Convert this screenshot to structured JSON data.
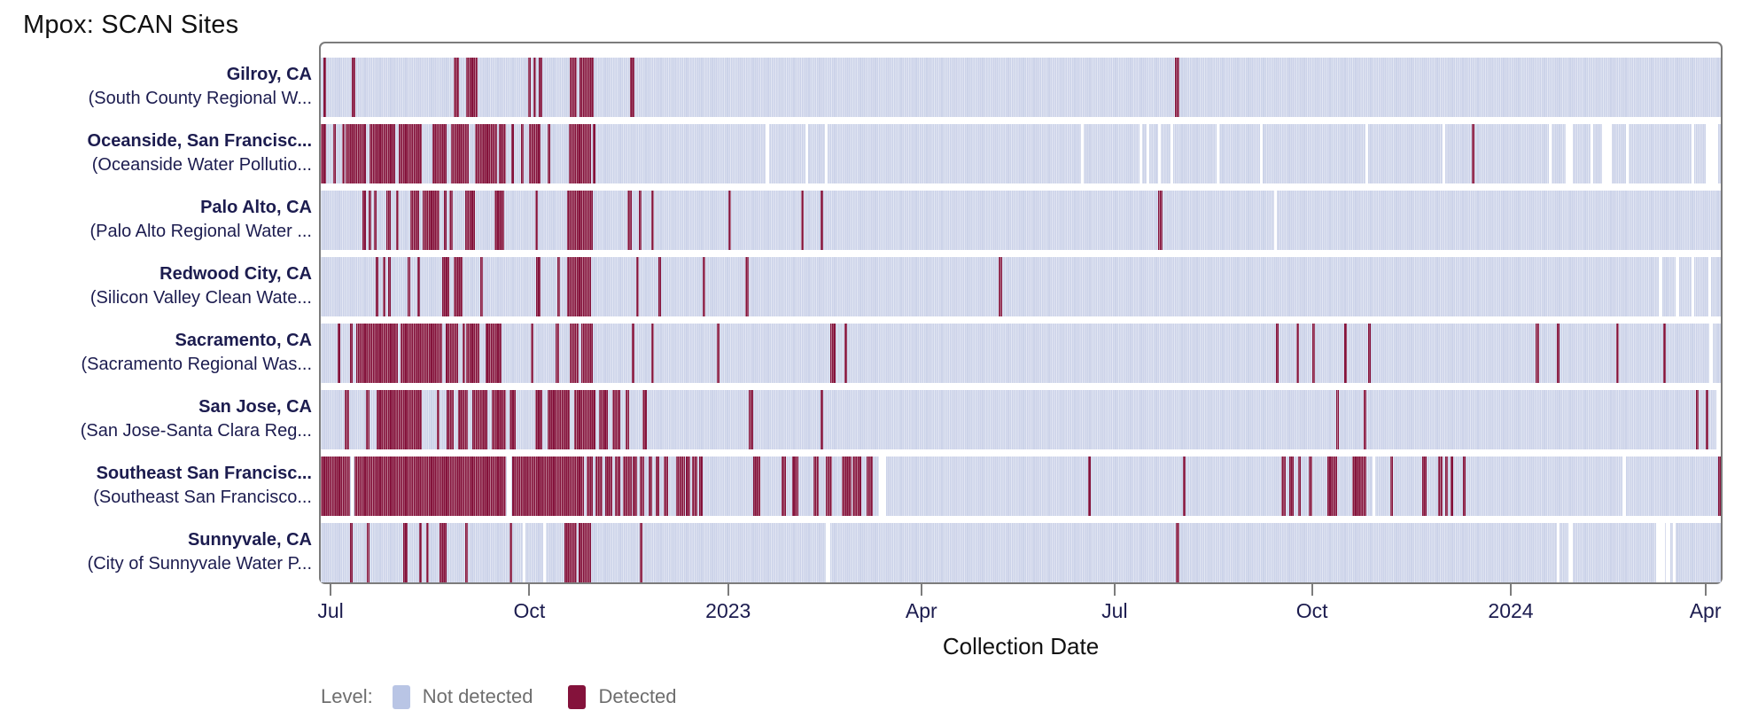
{
  "title": "Mpox: SCAN Sites",
  "colors": {
    "detected": "#84123b",
    "not_detected": "#ccd3e9",
    "legend_not_detected": "#b9c5e5",
    "missing_gap": "#ffffff",
    "plot_border": "#7c7c7c",
    "label_text": "#1c1c4f",
    "legend_text": "#6e6e6e"
  },
  "x_axis": {
    "label": "Collection Date",
    "ticks": [
      {
        "label": "Jul",
        "pos": 0.007
      },
      {
        "label": "Oct",
        "pos": 0.149
      },
      {
        "label": "2023",
        "pos": 0.291
      },
      {
        "label": "Apr",
        "pos": 0.429
      },
      {
        "label": "Jul",
        "pos": 0.567
      },
      {
        "label": "Oct",
        "pos": 0.708
      },
      {
        "label": "2024",
        "pos": 0.85
      },
      {
        "label": "Apr",
        "pos": 0.989
      }
    ]
  },
  "legend": {
    "label": "Level:",
    "items": [
      {
        "label": "Not detected",
        "color_key": "legend_not_detected"
      },
      {
        "label": "Detected",
        "color_key": "detected"
      }
    ]
  },
  "chart_data": {
    "type": "heatmap",
    "subtype": "detection-timeline-strips",
    "title": "Mpox: SCAN Sites",
    "xlabel": "Collection Date",
    "x_domain_estimate": [
      "2022-06-26",
      "2024-04-08"
    ],
    "value_levels": [
      "Not detected",
      "Detected"
    ],
    "note": "detected and missing are [start,end] fractions of the strip x-range (0 = left edge ~late Jun 2022, 1 = right edge ~early Apr 2024)",
    "sites": [
      {
        "name": "Gilroy, CA",
        "facility": "(South County Regional W...",
        "detected": [
          [
            0.002,
            0.004
          ],
          [
            0.022,
            0.025
          ],
          [
            0.095,
            0.099
          ],
          [
            0.104,
            0.112
          ],
          [
            0.148,
            0.15
          ],
          [
            0.152,
            0.154
          ],
          [
            0.156,
            0.158
          ],
          [
            0.178,
            0.183
          ],
          [
            0.185,
            0.195
          ],
          [
            0.221,
            0.224
          ],
          [
            0.61,
            0.613
          ]
        ],
        "missing": []
      },
      {
        "name": "Oceanside, San Francisc...",
        "facility": "(Oceanside Water Pollutio...",
        "detected": [
          [
            0.0,
            0.004
          ],
          [
            0.009,
            0.011
          ],
          [
            0.015,
            0.017
          ],
          [
            0.018,
            0.032
          ],
          [
            0.035,
            0.053
          ],
          [
            0.056,
            0.072
          ],
          [
            0.08,
            0.09
          ],
          [
            0.093,
            0.106
          ],
          [
            0.11,
            0.126
          ],
          [
            0.127,
            0.132
          ],
          [
            0.136,
            0.138
          ],
          [
            0.143,
            0.145
          ],
          [
            0.149,
            0.157
          ],
          [
            0.162,
            0.164
          ],
          [
            0.177,
            0.193
          ],
          [
            0.194,
            0.196
          ],
          [
            0.822,
            0.824
          ]
        ],
        "missing": [
          [
            0.318,
            0.32
          ],
          [
            0.346,
            0.348
          ],
          [
            0.36,
            0.362
          ],
          [
            0.543,
            0.545
          ],
          [
            0.585,
            0.587
          ],
          [
            0.59,
            0.592
          ],
          [
            0.598,
            0.6
          ],
          [
            0.607,
            0.609
          ],
          [
            0.64,
            0.642
          ],
          [
            0.671,
            0.673
          ],
          [
            0.746,
            0.748
          ],
          [
            0.801,
            0.803
          ],
          [
            0.877,
            0.879
          ],
          [
            0.889,
            0.894
          ],
          [
            0.907,
            0.909
          ],
          [
            0.915,
            0.922
          ],
          [
            0.932,
            0.934
          ],
          [
            0.979,
            0.981
          ],
          [
            0.989,
            0.998
          ]
        ]
      },
      {
        "name": "Palo Alto, CA",
        "facility": "(Palo Alto Regional Water ...",
        "detected": [
          [
            0.03,
            0.032
          ],
          [
            0.034,
            0.036
          ],
          [
            0.038,
            0.04
          ],
          [
            0.047,
            0.05
          ],
          [
            0.054,
            0.056
          ],
          [
            0.064,
            0.07
          ],
          [
            0.073,
            0.085
          ],
          [
            0.088,
            0.09
          ],
          [
            0.092,
            0.094
          ],
          [
            0.103,
            0.11
          ],
          [
            0.124,
            0.131
          ],
          [
            0.153,
            0.155
          ],
          [
            0.176,
            0.194
          ],
          [
            0.219,
            0.222
          ],
          [
            0.227,
            0.229
          ],
          [
            0.236,
            0.238
          ],
          [
            0.291,
            0.293
          ],
          [
            0.343,
            0.345
          ],
          [
            0.357,
            0.359
          ],
          [
            0.598,
            0.601
          ]
        ],
        "missing": [
          [
            0.681,
            0.683
          ]
        ]
      },
      {
        "name": "Redwood City, CA",
        "facility": "(Silicon Valley Clean Wate...",
        "detected": [
          [
            0.039,
            0.041
          ],
          [
            0.044,
            0.046
          ],
          [
            0.048,
            0.05
          ],
          [
            0.062,
            0.064
          ],
          [
            0.069,
            0.071
          ],
          [
            0.087,
            0.092
          ],
          [
            0.095,
            0.101
          ],
          [
            0.114,
            0.116
          ],
          [
            0.154,
            0.157
          ],
          [
            0.169,
            0.171
          ],
          [
            0.176,
            0.193
          ],
          [
            0.225,
            0.227
          ],
          [
            0.241,
            0.243
          ],
          [
            0.273,
            0.275
          ],
          [
            0.303,
            0.306
          ],
          [
            0.484,
            0.487
          ]
        ],
        "missing": [
          [
            0.956,
            0.958
          ],
          [
            0.968,
            0.97
          ],
          [
            0.979,
            0.981
          ],
          [
            0.991,
            0.993
          ]
        ]
      },
      {
        "name": "Sacramento, CA",
        "facility": "(Sacramento Regional Was...",
        "detected": [
          [
            0.012,
            0.014
          ],
          [
            0.021,
            0.023
          ],
          [
            0.025,
            0.055
          ],
          [
            0.057,
            0.087
          ],
          [
            0.089,
            0.098
          ],
          [
            0.101,
            0.103
          ],
          [
            0.104,
            0.113
          ],
          [
            0.118,
            0.129
          ],
          [
            0.15,
            0.152
          ],
          [
            0.168,
            0.17
          ],
          [
            0.178,
            0.184
          ],
          [
            0.186,
            0.194
          ],
          [
            0.222,
            0.224
          ],
          [
            0.236,
            0.238
          ],
          [
            0.283,
            0.285
          ],
          [
            0.364,
            0.368
          ],
          [
            0.374,
            0.376
          ],
          [
            0.682,
            0.684
          ],
          [
            0.697,
            0.699
          ],
          [
            0.708,
            0.71
          ],
          [
            0.731,
            0.733
          ],
          [
            0.748,
            0.75
          ],
          [
            0.868,
            0.87
          ],
          [
            0.883,
            0.885
          ],
          [
            0.925,
            0.927
          ],
          [
            0.959,
            0.961
          ]
        ],
        "missing": [
          [
            0.992,
            0.994
          ]
        ]
      },
      {
        "name": "San Jose, CA",
        "facility": "(San Jose-Santa Clara Reg...",
        "detected": [
          [
            0.017,
            0.02
          ],
          [
            0.032,
            0.035
          ],
          [
            0.04,
            0.072
          ],
          [
            0.083,
            0.085
          ],
          [
            0.09,
            0.095
          ],
          [
            0.098,
            0.105
          ],
          [
            0.108,
            0.119
          ],
          [
            0.122,
            0.132
          ],
          [
            0.135,
            0.139
          ],
          [
            0.153,
            0.158
          ],
          [
            0.162,
            0.178
          ],
          [
            0.181,
            0.196
          ],
          [
            0.199,
            0.205
          ],
          [
            0.208,
            0.214
          ],
          [
            0.218,
            0.22
          ],
          [
            0.23,
            0.233
          ],
          [
            0.306,
            0.309
          ],
          [
            0.357,
            0.359
          ],
          [
            0.725,
            0.727
          ],
          [
            0.745,
            0.747
          ],
          [
            0.982,
            0.984
          ],
          [
            0.989,
            0.991
          ]
        ],
        "missing": [
          [
            0.997,
            1.0
          ]
        ]
      },
      {
        "name": "Southeast San Francisc...",
        "facility": "(Southeast San Francisco...",
        "detected": [
          [
            0.0,
            0.021
          ],
          [
            0.024,
            0.132
          ],
          [
            0.137,
            0.188
          ],
          [
            0.19,
            0.194
          ],
          [
            0.196,
            0.201
          ],
          [
            0.203,
            0.208
          ],
          [
            0.21,
            0.214
          ],
          [
            0.216,
            0.222
          ],
          [
            0.223,
            0.226
          ],
          [
            0.228,
            0.231
          ],
          [
            0.234,
            0.237
          ],
          [
            0.239,
            0.242
          ],
          [
            0.245,
            0.248
          ],
          [
            0.254,
            0.26
          ],
          [
            0.261,
            0.264
          ],
          [
            0.265,
            0.269
          ],
          [
            0.27,
            0.273
          ],
          [
            0.309,
            0.314
          ],
          [
            0.329,
            0.332
          ],
          [
            0.337,
            0.341
          ],
          [
            0.352,
            0.356
          ],
          [
            0.361,
            0.365
          ],
          [
            0.372,
            0.379
          ],
          [
            0.38,
            0.386
          ],
          [
            0.39,
            0.394
          ],
          [
            0.548,
            0.55
          ],
          [
            0.616,
            0.618
          ],
          [
            0.686,
            0.689
          ],
          [
            0.692,
            0.695
          ],
          [
            0.698,
            0.7
          ],
          [
            0.706,
            0.708
          ],
          [
            0.719,
            0.726
          ],
          [
            0.737,
            0.747
          ],
          [
            0.764,
            0.766
          ],
          [
            0.787,
            0.79
          ],
          [
            0.798,
            0.801
          ],
          [
            0.803,
            0.805
          ],
          [
            0.807,
            0.809
          ],
          [
            0.816,
            0.818
          ],
          [
            0.998,
            1.0
          ]
        ],
        "missing": [
          [
            0.0215,
            0.0235
          ],
          [
            0.133,
            0.136
          ],
          [
            0.399,
            0.404
          ],
          [
            0.751,
            0.753
          ],
          [
            0.93,
            0.932
          ]
        ]
      },
      {
        "name": "Sunnyvale, CA",
        "facility": "(City of Sunnyvale Water P...",
        "detected": [
          [
            0.021,
            0.023
          ],
          [
            0.033,
            0.035
          ],
          [
            0.059,
            0.062
          ],
          [
            0.07,
            0.072
          ],
          [
            0.075,
            0.077
          ],
          [
            0.085,
            0.09
          ],
          [
            0.103,
            0.105
          ],
          [
            0.135,
            0.137
          ],
          [
            0.174,
            0.183
          ],
          [
            0.184,
            0.193
          ],
          [
            0.228,
            0.23
          ],
          [
            0.611,
            0.613
          ]
        ],
        "missing": [
          [
            0.144,
            0.146
          ],
          [
            0.159,
            0.161
          ],
          [
            0.361,
            0.364
          ],
          [
            0.883,
            0.885
          ],
          [
            0.891,
            0.894
          ],
          [
            0.954,
            0.96
          ],
          [
            0.961,
            0.964
          ],
          [
            0.966,
            0.968
          ]
        ]
      }
    ]
  }
}
